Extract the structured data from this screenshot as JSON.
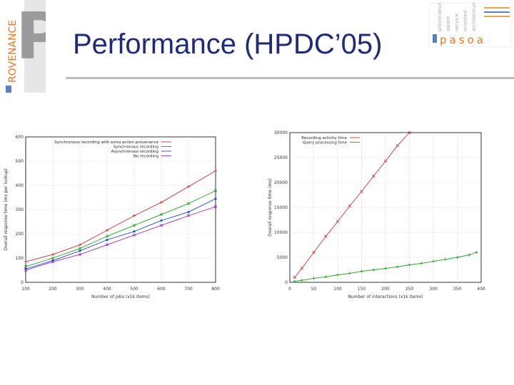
{
  "slide": {
    "title": "Performance (HPDC’05)",
    "left_logo": {
      "big_letter": "P",
      "word": "ROVENANCE"
    },
    "right_logo": {
      "name": "pasoa",
      "lines": [
        "provenance",
        "aware",
        "service",
        "oriented",
        "architecture"
      ]
    }
  },
  "colors": {
    "title": "#1f2a7a",
    "rule": "#bcbcbc",
    "accent_orange": "#e8a54b",
    "accent_blue": "#5b7fbf"
  },
  "chart_data": [
    {
      "type": "line",
      "title": "",
      "xlabel": "Number of jobs (x1k items)",
      "ylabel": "Overall response time (ms per lookup)",
      "xlim": [
        100,
        800
      ],
      "ylim": [
        0,
        600
      ],
      "x_ticks": [
        "100",
        "200",
        "300",
        "400",
        "500",
        "600",
        "700",
        "800"
      ],
      "y_ticks": [
        "0",
        "100",
        "200",
        "300",
        "400",
        "500",
        "600"
      ],
      "legend": "top-left",
      "grid": true,
      "x": [
        100,
        200,
        300,
        400,
        500,
        600,
        700,
        800
      ],
      "series": [
        {
          "name": "Synchronous recording with extra action provenance",
          "color": "#d03030",
          "values": [
            85,
            115,
            155,
            215,
            275,
            330,
            395,
            460
          ]
        },
        {
          "name": "Synchronous recording",
          "color": "#1fa01f",
          "values": [
            65,
            100,
            140,
            190,
            235,
            280,
            325,
            378
          ]
        },
        {
          "name": "Asynchronous recording",
          "color": "#2050c8",
          "values": [
            55,
            90,
            130,
            175,
            210,
            255,
            290,
            345
          ]
        },
        {
          "name": "No recording",
          "color": "#a02cc0",
          "values": [
            50,
            85,
            115,
            155,
            195,
            235,
            275,
            312
          ]
        }
      ]
    },
    {
      "type": "line",
      "title": "",
      "xlabel": "Number of interactions (x1k items)",
      "ylabel": "Overall response time (ms)",
      "xlim": [
        0,
        400
      ],
      "ylim": [
        0,
        30000
      ],
      "x_ticks": [
        "0",
        "50",
        "100",
        "150",
        "200",
        "250",
        "300",
        "350",
        "400"
      ],
      "y_ticks": [
        "0",
        "5000",
        "10000",
        "15000",
        "20000",
        "25000",
        "30000"
      ],
      "legend": "top-left",
      "grid": true,
      "series": [
        {
          "name": "Recording activity time",
          "color": "#d03030",
          "x": [
            10,
            25,
            50,
            75,
            100,
            125,
            150,
            175,
            200,
            225,
            250
          ],
          "values": [
            1000,
            2800,
            6000,
            9200,
            12200,
            15300,
            18200,
            21300,
            24300,
            27400,
            30000
          ]
        },
        {
          "name": "Query processing time",
          "color": "#1fa01f",
          "x": [
            10,
            25,
            50,
            75,
            100,
            125,
            150,
            175,
            200,
            225,
            250,
            275,
            300,
            325,
            350,
            375,
            390
          ],
          "values": [
            200,
            400,
            800,
            1100,
            1500,
            1800,
            2200,
            2500,
            2800,
            3100,
            3500,
            3800,
            4200,
            4600,
            5000,
            5500,
            6000
          ]
        }
      ]
    }
  ]
}
